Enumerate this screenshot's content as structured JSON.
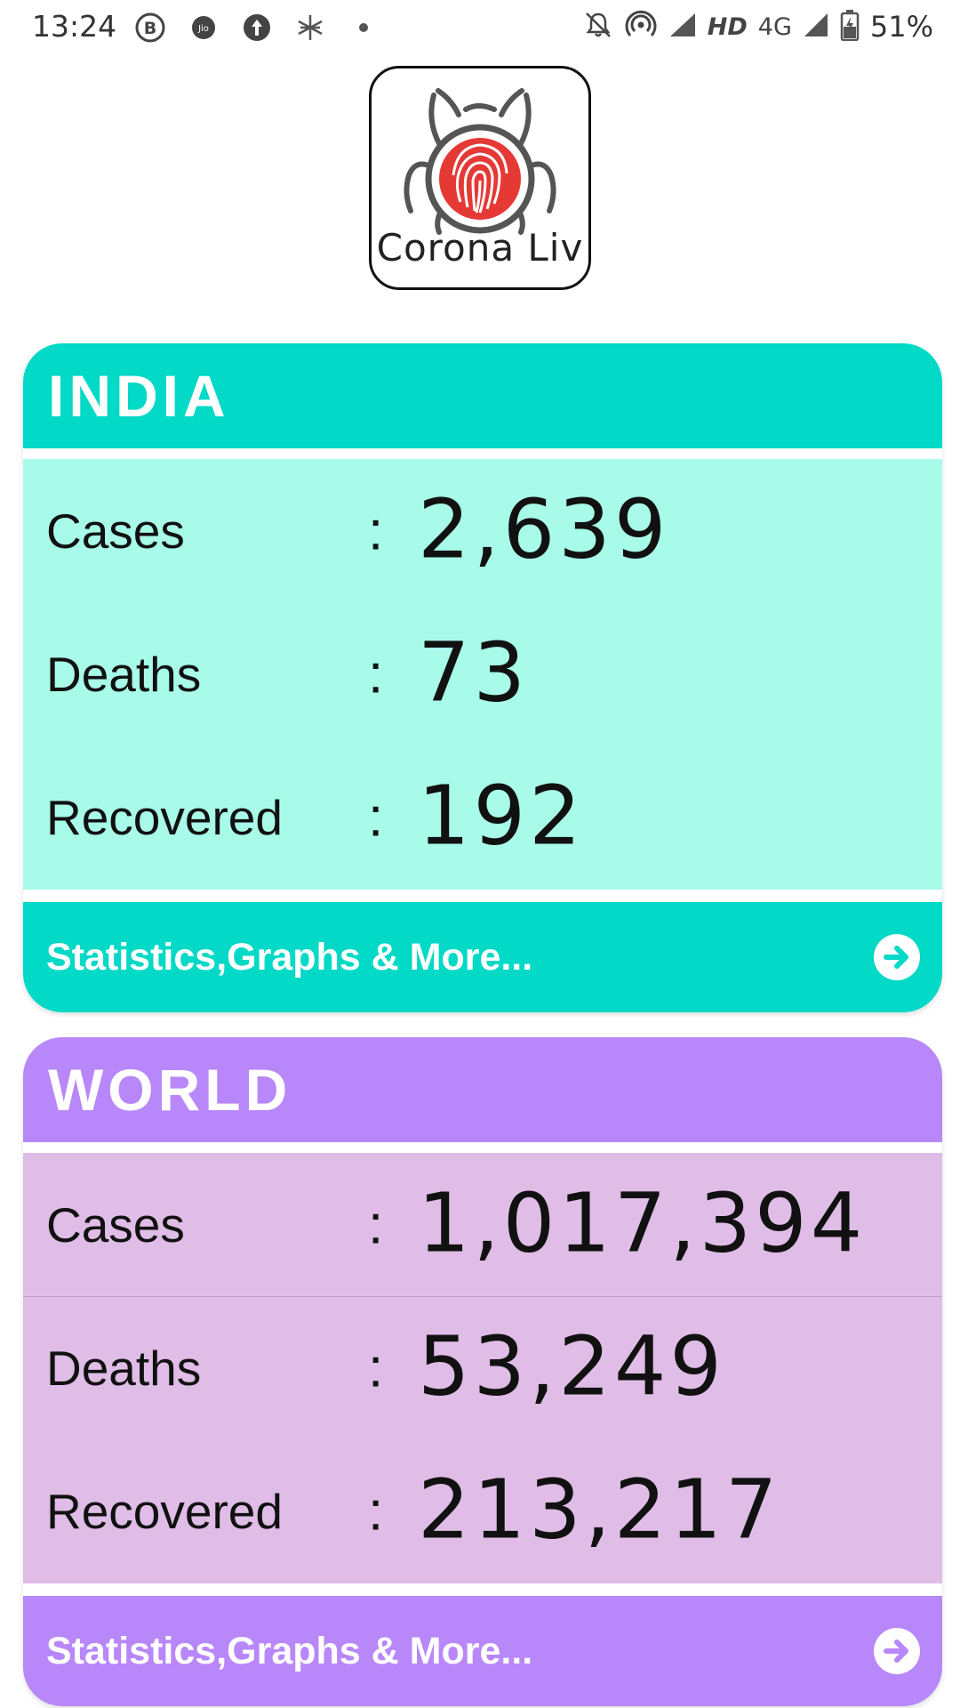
{
  "status_bar": {
    "time": "13:24",
    "network_hd": "HD",
    "network_type": "4G",
    "battery": "51%",
    "icons": [
      "bbm-icon",
      "jio-icon",
      "upload-icon",
      "asterisk-icon",
      "dot-icon",
      "mute-icon",
      "hotspot-icon",
      "signal-icon",
      "battery-icon"
    ]
  },
  "logo": {
    "text": "Corona Liv",
    "colors": {
      "fingerprint": "#e53935",
      "bug": "#555555"
    }
  },
  "india": {
    "title": "INDIA",
    "rows": [
      {
        "label": "Cases",
        "colon": ":",
        "value": "2,639"
      },
      {
        "label": "Deaths",
        "colon": ":",
        "value": "73"
      },
      {
        "label": "Recovered",
        "colon": ":",
        "value": "192"
      }
    ],
    "footer_label": "Statistics,Graphs & More...",
    "colors": {
      "header": "#02d9c6",
      "body": "#a8fbe9"
    }
  },
  "world": {
    "title": "WORLD",
    "rows": [
      {
        "label": "Cases",
        "colon": ":",
        "value": "1,017,394"
      },
      {
        "label": "Deaths",
        "colon": ":",
        "value": "53,249"
      },
      {
        "label": "Recovered",
        "colon": ":",
        "value": "213,217"
      }
    ],
    "footer_label": "Statistics,Graphs & More...",
    "colors": {
      "header": "#b887f9",
      "body": "#dfbde6"
    }
  }
}
